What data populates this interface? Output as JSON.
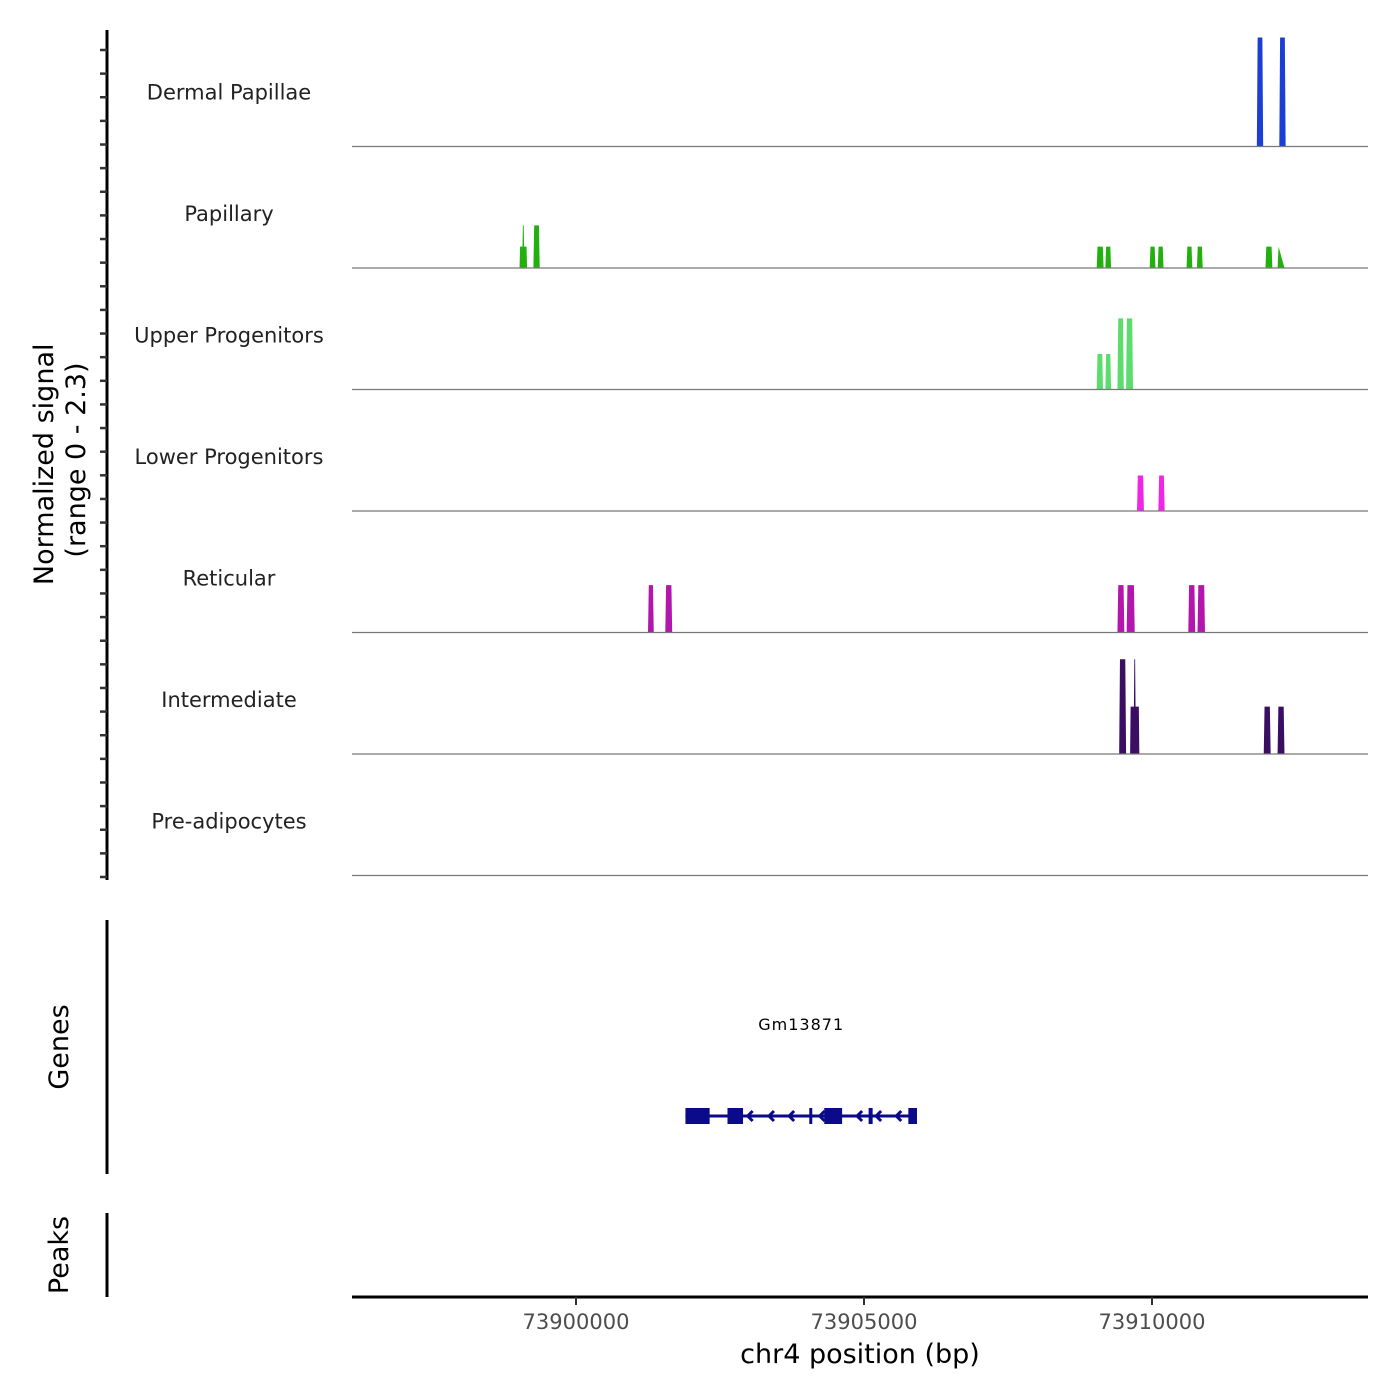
{
  "chart_data": {
    "type": "area",
    "title": "",
    "xlabel": "chr4 position (bp)",
    "ylabel": "Normalized signal\n(range 0 - 2.3)",
    "ylabel_lines": [
      "Normalized signal",
      "(range 0 - 2.3)"
    ],
    "xlim": [
      73896111,
      73913750
    ],
    "ylim": [
      0,
      2.3
    ],
    "x_ticks": [
      73900000,
      73905000,
      73910000
    ],
    "x_tick_labels": [
      "73900000",
      "73905000",
      "73910000"
    ],
    "y_minor_tick_count": 36,
    "tracks": [
      {
        "name": "Dermal Papillae",
        "color": "#1b3fd6",
        "peaks": [
          {
            "start": 73911820,
            "end": 73911930,
            "value": 2.3
          },
          {
            "start": 73912210,
            "end": 73912320,
            "value": 2.3
          }
        ]
      },
      {
        "name": "Papillary",
        "color": "#22b00e",
        "peaks": [
          {
            "start": 73899020,
            "end": 73899150,
            "value": 0.45,
            "spike": 0.9
          },
          {
            "start": 73899260,
            "end": 73899370,
            "value": 0.9
          },
          {
            "start": 73909040,
            "end": 73909160,
            "value": 0.45
          },
          {
            "start": 73909190,
            "end": 73909290,
            "value": 0.45
          },
          {
            "start": 73909960,
            "end": 73910060,
            "value": 0.45
          },
          {
            "start": 73910100,
            "end": 73910200,
            "value": 0.45
          },
          {
            "start": 73910600,
            "end": 73910700,
            "value": 0.45
          },
          {
            "start": 73910780,
            "end": 73910880,
            "value": 0.45
          },
          {
            "start": 73911970,
            "end": 73912090,
            "value": 0.45
          },
          {
            "start": 73912180,
            "end": 73912300,
            "value": 0.45,
            "shape": "ramp"
          }
        ]
      },
      {
        "name": "Upper Progenitors",
        "color": "#5ddc6e",
        "peaks": [
          {
            "start": 73909040,
            "end": 73909150,
            "value": 0.75
          },
          {
            "start": 73909190,
            "end": 73909290,
            "value": 0.75
          },
          {
            "start": 73909400,
            "end": 73909510,
            "value": 1.5
          },
          {
            "start": 73909550,
            "end": 73909670,
            "value": 1.5
          }
        ]
      },
      {
        "name": "Lower Progenitors",
        "color": "#ee27e6",
        "peaks": [
          {
            "start": 73909740,
            "end": 73909860,
            "value": 0.75
          },
          {
            "start": 73910110,
            "end": 73910220,
            "value": 0.75
          }
        ]
      },
      {
        "name": "Reticular",
        "color": "#b316ac",
        "peaks": [
          {
            "start": 73901250,
            "end": 73901350,
            "value": 1.0
          },
          {
            "start": 73901550,
            "end": 73901670,
            "value": 1.0
          },
          {
            "start": 73909400,
            "end": 73909520,
            "value": 1.0
          },
          {
            "start": 73909560,
            "end": 73909700,
            "value": 1.0
          },
          {
            "start": 73910630,
            "end": 73910750,
            "value": 1.0
          },
          {
            "start": 73910790,
            "end": 73910920,
            "value": 1.0
          }
        ]
      },
      {
        "name": "Intermediate",
        "color": "#3a0e63",
        "peaks": [
          {
            "start": 73909430,
            "end": 73909550,
            "value": 2.0
          },
          {
            "start": 73909620,
            "end": 73909780,
            "value": 1.0,
            "spike": 2.0
          },
          {
            "start": 73911940,
            "end": 73912060,
            "value": 1.0
          },
          {
            "start": 73912180,
            "end": 73912300,
            "value": 1.0
          }
        ]
      },
      {
        "name": "Pre-adipocytes",
        "color": "#000000",
        "peaks": []
      }
    ],
    "genes_panel": {
      "label": "Genes",
      "genes": [
        {
          "name": "Gm13871",
          "color": "#0a0a8a",
          "start": 73901900,
          "end": 73905920,
          "strand": "-",
          "exons": [
            [
              73901900,
              73902320
            ],
            [
              73902630,
              73902900
            ],
            [
              73904050,
              73904100
            ],
            [
              73904310,
              73904620
            ],
            [
              73905080,
              73905150
            ],
            [
              73905770,
              73905920
            ]
          ],
          "arrows": [
            73902980,
            73903350,
            73903700,
            73904230,
            73904880,
            73905210,
            73905560
          ]
        }
      ]
    },
    "peaks_panel": {
      "label": "Peaks",
      "peaks": []
    },
    "grid": false,
    "legend": "none"
  }
}
